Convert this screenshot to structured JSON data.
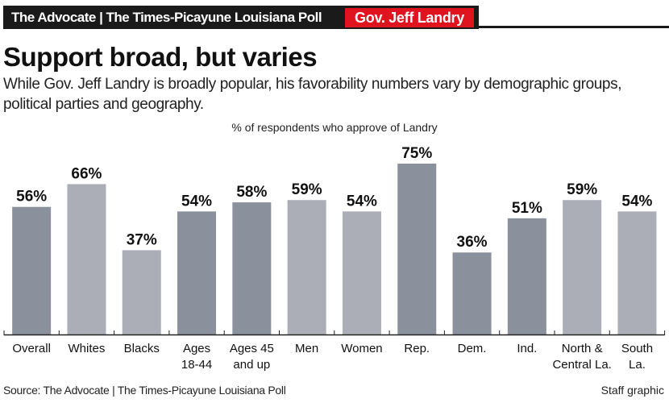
{
  "header": {
    "source_label": "The Advocate | The Times-Picayune Louisiana Poll",
    "topic": "Gov. Jeff Landry"
  },
  "title": "Support broad, but varies",
  "subtitle": "While Gov. Jeff Landry is broadly popular, his favorability numbers vary by demographic groups, political parties and geography.",
  "footer": {
    "source": "Source: The Advocate | The Times-Picayune Louisiana Poll",
    "credit": "Staff graphic"
  },
  "chart_data": {
    "type": "bar",
    "title": "% of respondents who approve of Landry",
    "categories": [
      "Overall",
      "Whites",
      "Blacks",
      "Ages 18-44",
      "Ages 45 and up",
      "Men",
      "Women",
      "Rep.",
      "Dem.",
      "Ind.",
      "North & Central La.",
      "South La."
    ],
    "category_lines": [
      [
        "Overall"
      ],
      [
        "Whites"
      ],
      [
        "Blacks"
      ],
      [
        "Ages",
        "18-44"
      ],
      [
        "Ages 45",
        "and up"
      ],
      [
        "Men"
      ],
      [
        "Women"
      ],
      [
        "Rep."
      ],
      [
        "Dem."
      ],
      [
        "Ind."
      ],
      [
        "North &",
        "Central La."
      ],
      [
        "South",
        "La."
      ]
    ],
    "values": [
      56,
      66,
      37,
      54,
      58,
      59,
      54,
      75,
      36,
      51,
      59,
      54
    ],
    "data_labels": [
      "56%",
      "66%",
      "37%",
      "54%",
      "58%",
      "59%",
      "54%",
      "75%",
      "36%",
      "51%",
      "59%",
      "54%"
    ],
    "ylim": [
      0,
      75
    ],
    "grid": false,
    "colors": {
      "dark": "#8a909c",
      "light": "#abaeb7"
    },
    "bar_shades": [
      "dark",
      "light",
      "light",
      "dark",
      "dark",
      "light",
      "light",
      "dark",
      "dark",
      "dark",
      "light",
      "light"
    ]
  }
}
